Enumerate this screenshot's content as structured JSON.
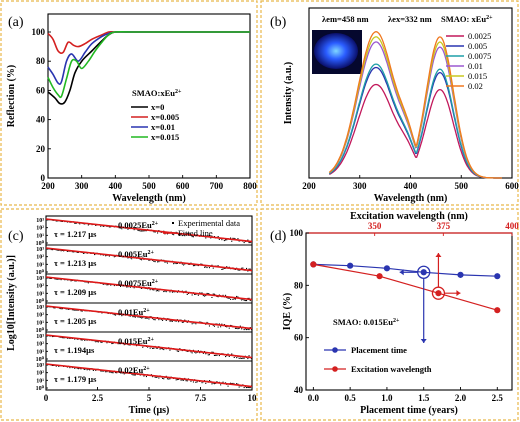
{
  "chart_data": [
    {
      "type": "line",
      "panel": "(a)",
      "xlabel": "Wavelength (nm)",
      "ylabel": "Reflection (%)",
      "xlim": [
        200,
        800
      ],
      "ylim": [
        0,
        100
      ],
      "xticks": [
        200,
        300,
        400,
        500,
        600,
        700,
        800
      ],
      "yticks": [
        0,
        20,
        40,
        60,
        80,
        100
      ],
      "legend_title": "SMAO:xEu2+",
      "legend_position": "right-middle",
      "series": [
        {
          "name": "x=0",
          "color": "#000000",
          "x": [
            200,
            220,
            235,
            250,
            265,
            280,
            300,
            330,
            360,
            380,
            400,
            450,
            500,
            600,
            700,
            800
          ],
          "y": [
            59,
            55,
            51,
            52,
            60,
            72,
            80,
            87,
            94,
            98,
            100,
            100,
            100,
            100,
            100,
            100
          ]
        },
        {
          "name": "x=0.005",
          "color": "#d42020",
          "x": [
            200,
            215,
            230,
            245,
            260,
            275,
            290,
            310,
            330,
            360,
            380,
            400,
            450,
            500,
            600,
            700,
            800
          ],
          "y": [
            99,
            95,
            87,
            86,
            93,
            91,
            90,
            92,
            95,
            98,
            100,
            100,
            100,
            100,
            100,
            100,
            100
          ]
        },
        {
          "name": "x=0.01",
          "color": "#2a35b0",
          "x": [
            200,
            215,
            230,
            240,
            255,
            270,
            290,
            310,
            330,
            360,
            380,
            400,
            450,
            500,
            600,
            700,
            800
          ],
          "y": [
            76,
            71,
            65,
            66,
            80,
            85,
            80,
            86,
            92,
            97,
            99,
            100,
            100,
            100,
            100,
            100,
            100
          ]
        },
        {
          "name": "x=0.015",
          "color": "#22b822",
          "x": [
            200,
            215,
            230,
            240,
            255,
            270,
            285,
            300,
            320,
            340,
            360,
            380,
            400,
            450,
            500,
            600,
            700,
            800
          ],
          "y": [
            69,
            62,
            57,
            56,
            68,
            80,
            80,
            75,
            80,
            87,
            93,
            98,
            100,
            100,
            100,
            100,
            100,
            100
          ]
        }
      ]
    },
    {
      "type": "line",
      "panel": "(b)",
      "xlabel": "Wavelength (nm)",
      "ylabel": "Intensity (a.u.)",
      "xlim": [
        200,
        600
      ],
      "xticks": [
        200,
        300,
        400,
        500,
        600
      ],
      "annotations": [
        "λem=458 nm",
        "λex=332 nm"
      ],
      "legend_title": "SMAO: xEu2+",
      "legend_position": "top-right",
      "series_note": "excitation band peak ~332 nm, emission band peak ~458 nm",
      "series": [
        {
          "name": "0.0025",
          "color": "#c2185b",
          "excitation_peak": 0.55,
          "emission_peak": 0.52
        },
        {
          "name": "0.005",
          "color": "#2a35b0",
          "excitation_peak": 0.65,
          "emission_peak": 0.62
        },
        {
          "name": "0.0075",
          "color": "#1f9fa8",
          "excitation_peak": 0.67,
          "emission_peak": 0.64
        },
        {
          "name": "0.01",
          "color": "#9b59d0",
          "excitation_peak": 0.8,
          "emission_peak": 0.77
        },
        {
          "name": "0.015",
          "color": "#c8c820",
          "excitation_peak": 0.83,
          "emission_peak": 0.8
        },
        {
          "name": "0.02",
          "color": "#f07820",
          "excitation_peak": 0.86,
          "emission_peak": 0.83
        }
      ]
    },
    {
      "type": "line",
      "panel": "(c)",
      "xlabel": "Time (μs)",
      "ylabel": "Log10[Intensity (a.u.)]",
      "xlim": [
        0,
        10
      ],
      "xticks": [
        "0",
        "2.5",
        "5",
        "7.5",
        "10"
      ],
      "yticks": [
        "10^3",
        "10^2",
        "10^1",
        "10^0"
      ],
      "legend": [
        "Experimental data",
        "Fitted line"
      ],
      "subpanels": [
        {
          "label": "0.0025Eu2+",
          "tau": "τ = 1.217 μs"
        },
        {
          "label": "0.005Eu2+",
          "tau": "τ = 1.213 μs"
        },
        {
          "label": "0.0075Eu2+",
          "tau": "τ = 1.209 μs"
        },
        {
          "label": "0.01Eu2+",
          "tau": "τ = 1.205 μs"
        },
        {
          "label": "0.015Eu2+",
          "tau": "τ = 1.194μs"
        },
        {
          "label": "0.02Eu2+",
          "tau": "τ = 1.179 μs"
        }
      ]
    },
    {
      "type": "line",
      "panel": "(d)",
      "xlabel": "Placement time (years)",
      "x2label": "Excitation wavelength (nm)",
      "ylabel": "IQE (%)",
      "xlim": [
        -0.1,
        2.7
      ],
      "x2lim": [
        325,
        400
      ],
      "ylim": [
        40,
        100
      ],
      "xticks": [
        "0.0",
        "0.5",
        "1.0",
        "1.5",
        "2.0",
        "2.5"
      ],
      "x2ticks": [
        "350",
        "375",
        "400"
      ],
      "yticks": [
        "40",
        "60",
        "80",
        "100"
      ],
      "annotation": "SMAO: 0.015Eu2+",
      "series": [
        {
          "name": "Placement time",
          "color": "#2a35b0",
          "x": [
            0.0,
            0.5,
            1.0,
            1.5,
            2.0,
            2.5
          ],
          "y": [
            88.0,
            87.5,
            86.5,
            85.0,
            84.0,
            83.5
          ]
        },
        {
          "name": "Excitation wavelength",
          "color": "#d42020",
          "x": [
            0.0,
            0.9,
            1.7,
            2.5
          ],
          "y": [
            88.0,
            83.5,
            77.0,
            70.5
          ]
        }
      ]
    }
  ],
  "text": {
    "a": {
      "label": "(a)",
      "ylabel": "Reflection (%)",
      "xlabel": "Wavelength (nm)",
      "legend_title": "SMAO:xEu",
      "legend_sup": "2+",
      "legend": [
        "x=0",
        "x=0.005",
        "x=0.01",
        "x=0.015"
      ],
      "xticks": [
        "200",
        "300",
        "400",
        "500",
        "600",
        "700",
        "800"
      ],
      "yticks": [
        "0",
        "20",
        "40",
        "60",
        "80",
        "100"
      ]
    },
    "b": {
      "label": "(b)",
      "ylabel": "Intensity (a.u.)",
      "xlabel": "Wavelength (nm)",
      "lam_em": "λem=458 nm",
      "lam_ex": "λex=332 nm",
      "legend_title": "SMAO: xEu",
      "legend_sup": "2+",
      "legend": [
        "0.0025",
        "0.005",
        "0.0075",
        "0.01",
        "0.015",
        "0.02"
      ],
      "xticks": [
        "200",
        "300",
        "400",
        "500",
        "600"
      ]
    },
    "c": {
      "label": "(c)",
      "ylabel": "Log10[Intensity (a.u.)]",
      "xlabel": "Time (μs)",
      "leg_exp": "Experimental data",
      "leg_fit": "Fitted line",
      "xticks": [
        "0",
        "2.5",
        "5",
        "7.5",
        "10"
      ],
      "sample": [
        "0.0025Eu2+",
        "0.005Eu2+",
        "0.0075Eu2+",
        "0.01Eu2+",
        "0.015Eu2+",
        "0.02Eu2+"
      ],
      "tau": [
        "τ = 1.217 μs",
        "τ = 1.213 μs",
        "τ = 1.209 μs",
        "τ = 1.205 μs",
        "τ = 1.194μs",
        "τ = 1.179 μs"
      ]
    },
    "d": {
      "label": "(d)",
      "ylabel": "IQE (%)",
      "xlabel": "Placement time (years)",
      "x2label": "Excitation wavelength (nm)",
      "annotation": "SMAO: 0.015Eu2+",
      "legend": [
        "Placement time",
        "Excitation wavelength"
      ],
      "xticks": [
        "0.0",
        "0.5",
        "1.0",
        "1.5",
        "2.0",
        "2.5"
      ],
      "x2ticks": [
        "350",
        "375",
        "400"
      ],
      "yticks": [
        "40",
        "60",
        "80",
        "100"
      ]
    }
  }
}
